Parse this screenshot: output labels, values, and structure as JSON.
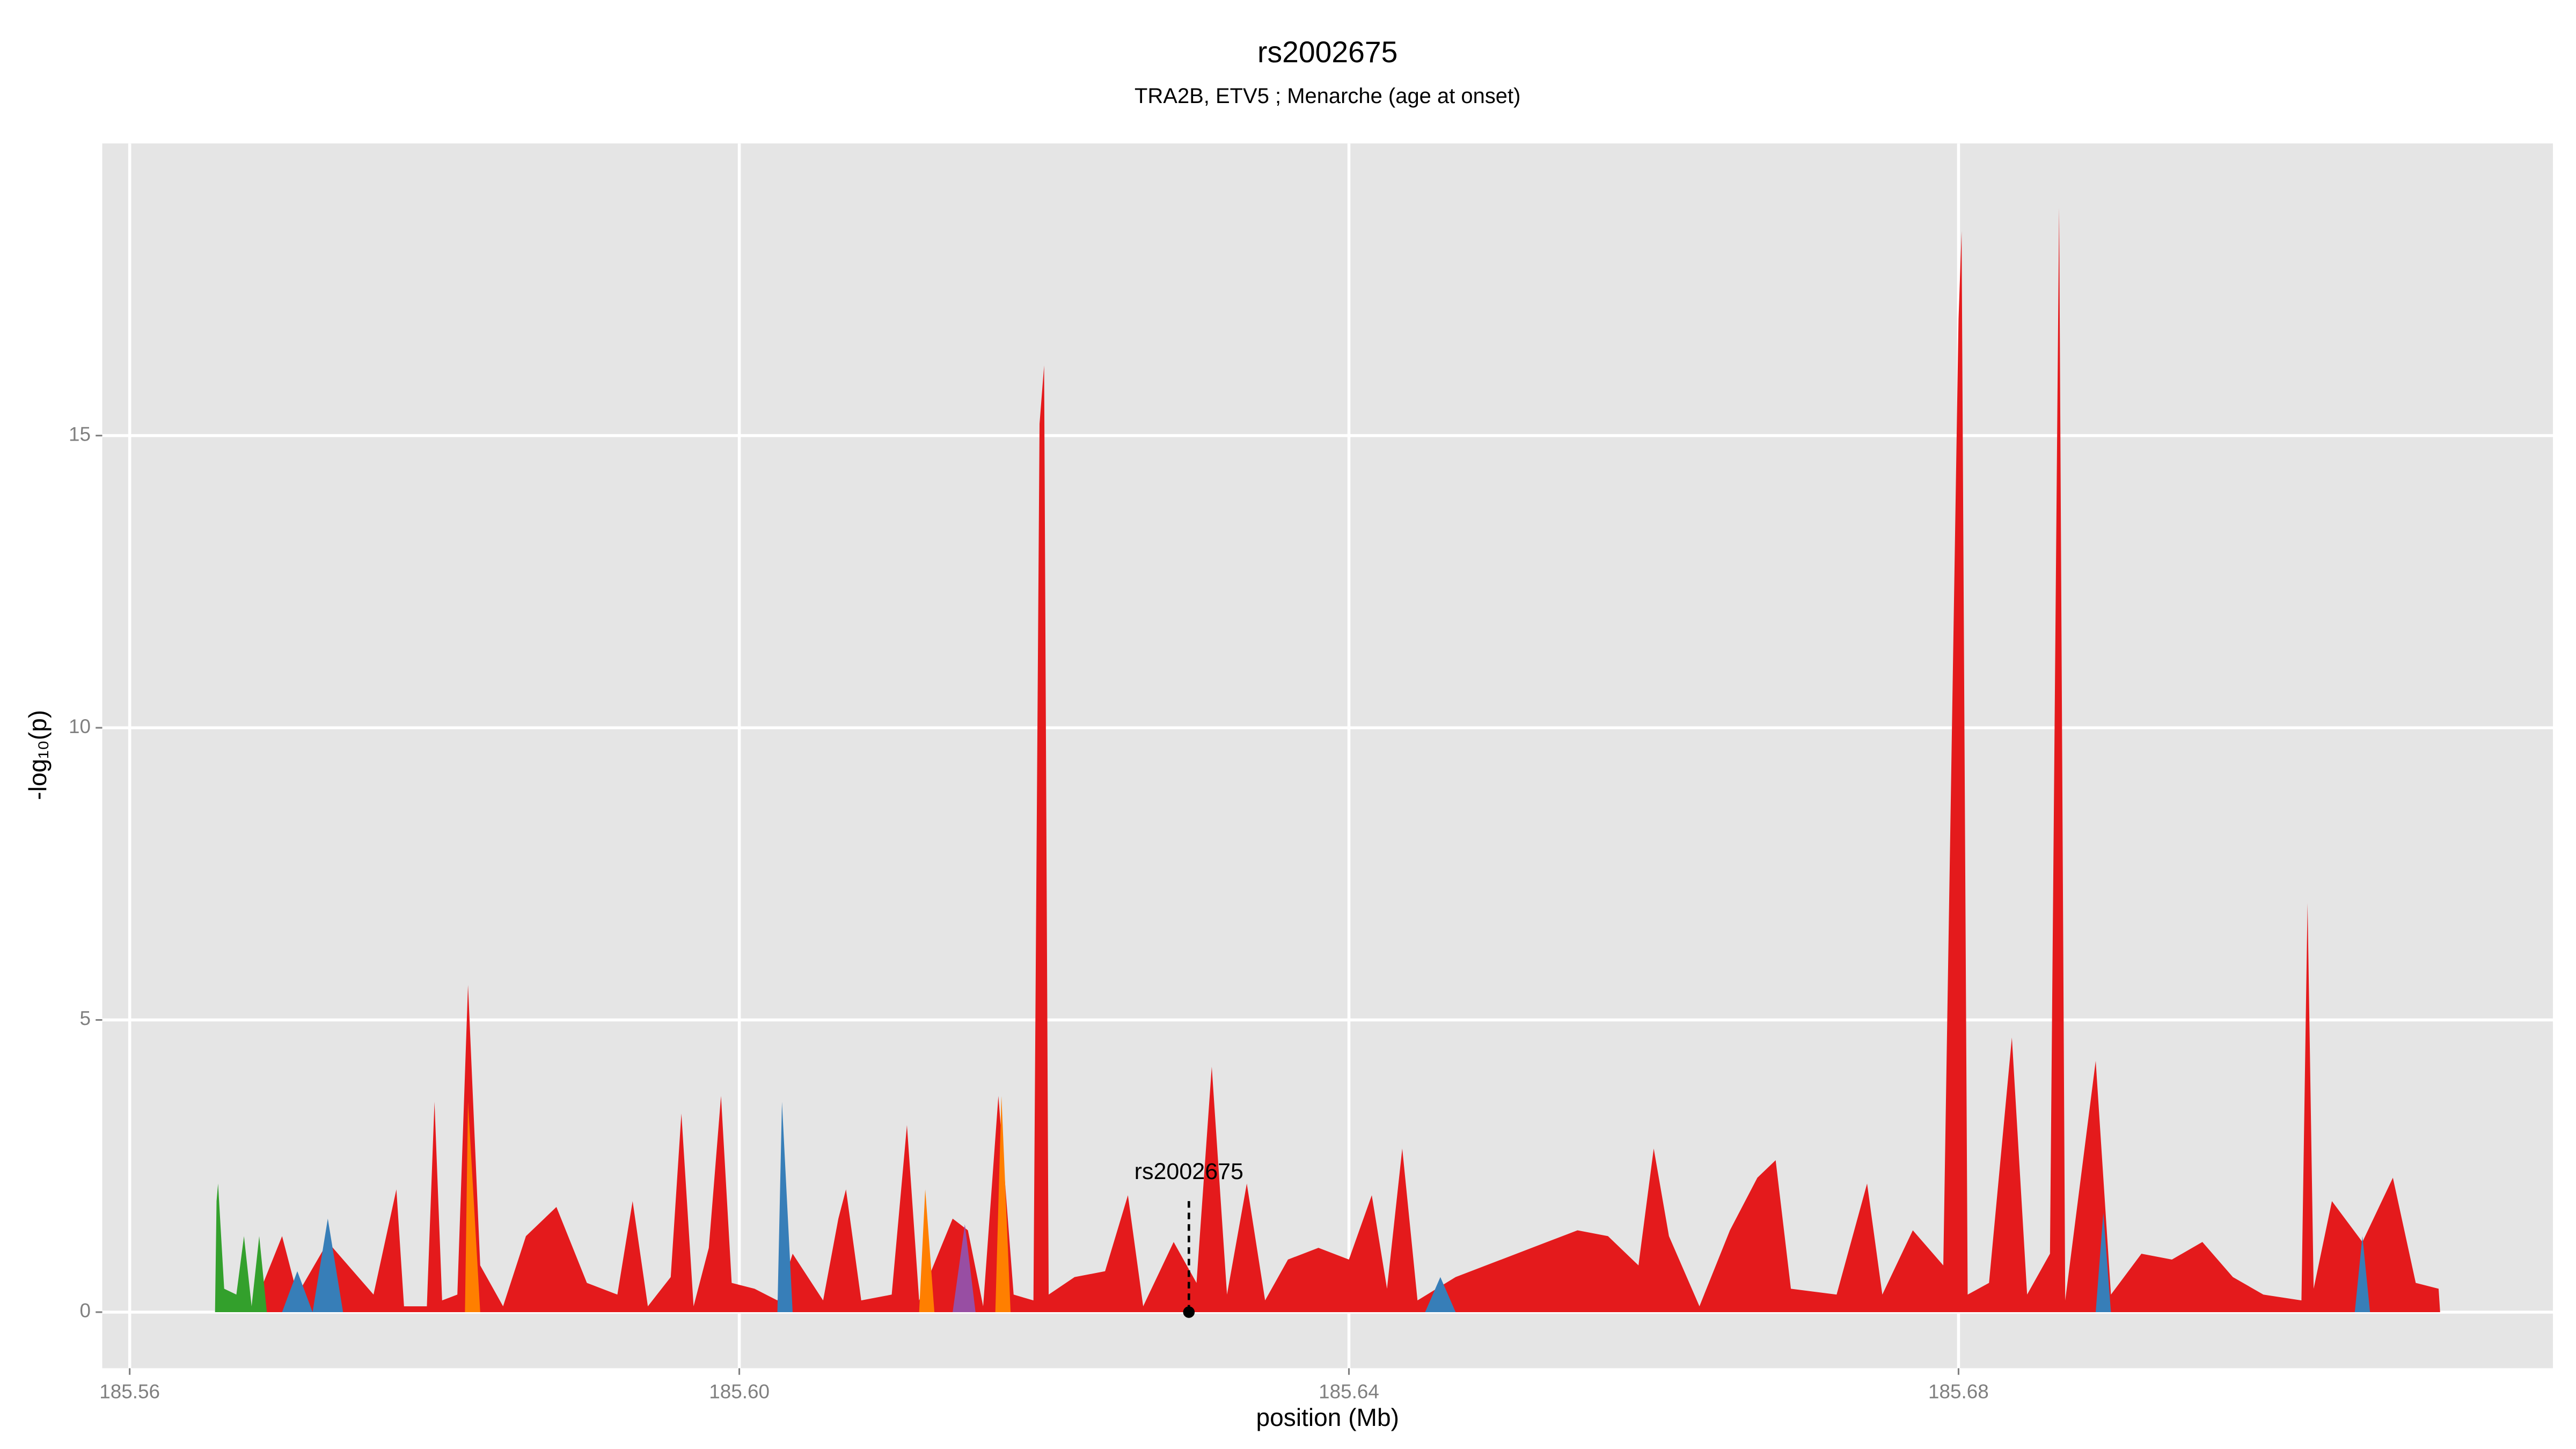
{
  "chart_data": {
    "type": "area",
    "title": "rs2002675",
    "subtitle": "TRA2B, ETV5 ; Menarche (age at onset)",
    "x_label": "position (Mb)",
    "y_label": "-log₁₀(p)",
    "xlim": [
      185.5582,
      185.719
    ],
    "ylim": [
      -0.96,
      20
    ],
    "xticks": [
      185.56,
      {
        "value": 185.6,
        "label": "185.60"
      },
      185.64,
      185.68
    ],
    "yticks": [
      0,
      5,
      10,
      15
    ],
    "grid": true,
    "annotation": {
      "label": "rs2002675",
      "x": 185.6295,
      "y_top": 1.9,
      "y_point": 0
    },
    "series": [
      {
        "color": "#e41a1c",
        "x": [
          185.568,
          185.57,
          185.571,
          185.573,
          185.576,
          185.5775,
          185.578,
          185.5795,
          185.58,
          185.5805,
          185.5815,
          185.5822,
          185.583,
          185.5845,
          185.586,
          185.588,
          185.59,
          185.592,
          185.593,
          185.594,
          185.5955,
          185.5962,
          185.597,
          185.598,
          185.5988,
          185.5995,
          185.601,
          185.6025,
          185.6035,
          185.6055,
          185.6065,
          185.607,
          185.608,
          185.61,
          185.611,
          185.6118,
          185.614,
          185.615,
          185.616,
          185.617,
          185.618,
          185.6193,
          185.6197,
          185.62,
          185.6203,
          185.622,
          185.624,
          185.6255,
          185.6265,
          185.6285,
          185.63,
          185.631,
          185.632,
          185.6333,
          185.6345,
          185.636,
          185.638,
          185.64,
          185.6415,
          185.6425,
          185.6435,
          185.6445,
          185.647,
          185.65,
          185.653,
          185.655,
          185.657,
          185.659,
          185.66,
          185.661,
          185.663,
          185.665,
          185.6668,
          185.668,
          185.669,
          185.672,
          185.674,
          185.675,
          185.677,
          185.679,
          185.68,
          185.6802,
          185.6806,
          185.682,
          185.6835,
          185.6845,
          185.686,
          185.6866,
          185.687,
          185.689,
          185.69,
          185.692,
          185.694,
          185.696,
          185.698,
          185.7,
          185.7025,
          185.7029,
          185.7033,
          185.7045,
          185.7065,
          185.7085,
          185.71,
          185.7115,
          185.7116
        ],
        "values": [
          0,
          1.3,
          0.3,
          1.2,
          0.3,
          2.1,
          0.1,
          0.1,
          3.6,
          0.2,
          0.3,
          5.6,
          0.8,
          0.1,
          1.3,
          1.8,
          0.5,
          0.3,
          1.9,
          0.1,
          0.6,
          3.4,
          0.1,
          1.1,
          3.7,
          0.5,
          0.4,
          0.2,
          1.0,
          0.2,
          1.6,
          2.1,
          0.2,
          0.3,
          3.2,
          0.2,
          1.6,
          1.4,
          0.1,
          3.7,
          0.3,
          0.2,
          15.2,
          16.2,
          0.3,
          0.6,
          0.7,
          2.0,
          0.1,
          1.2,
          0.5,
          4.2,
          0.3,
          2.2,
          0.2,
          0.9,
          1.1,
          0.9,
          2.0,
          0.4,
          2.8,
          0.2,
          0.6,
          0.9,
          1.2,
          1.4,
          1.3,
          0.8,
          2.8,
          1.3,
          0.1,
          1.4,
          2.3,
          2.6,
          0.4,
          0.3,
          2.2,
          0.3,
          1.4,
          0.8,
          17.0,
          18.5,
          0.3,
          0.5,
          4.7,
          0.3,
          1.0,
          18.9,
          0.2,
          4.3,
          0.3,
          1.0,
          0.9,
          1.2,
          0.6,
          0.3,
          0.2,
          7.0,
          0.4,
          1.9,
          1.2,
          2.3,
          0.5,
          0.4,
          0
        ]
      },
      {
        "color": "#ff7f00",
        "x": [
          185.582,
          185.5822,
          185.583,
          185.6118,
          185.6122,
          185.6128,
          185.6168,
          185.6172,
          185.6178
        ],
        "values": [
          0,
          3.6,
          0,
          0,
          2.1,
          0,
          0,
          3.7,
          0
        ]
      },
      {
        "color": "#377eb8",
        "x": [
          185.57,
          185.571,
          185.572,
          185.573,
          185.574,
          185.6025,
          185.6028,
          185.6035,
          185.645,
          185.646,
          185.647,
          185.689,
          185.6895,
          185.69,
          185.706,
          185.7065,
          185.707
        ],
        "values": [
          0,
          0.7,
          0,
          1.6,
          0,
          0,
          3.6,
          0,
          0,
          0.6,
          0,
          0,
          1.7,
          0,
          0,
          1.3,
          0
        ]
      },
      {
        "color": "#984ea3",
        "x": [
          185.614,
          185.6148,
          185.6155
        ],
        "values": [
          0,
          1.5,
          0
        ]
      },
      {
        "color": "#33a02c",
        "x": [
          185.5656,
          185.5657,
          185.5658,
          185.5662,
          185.567,
          185.5675,
          185.568,
          185.5685,
          185.569
        ],
        "values": [
          0,
          1.9,
          2.2,
          0.4,
          0.3,
          1.3,
          0.1,
          1.3,
          0
        ]
      }
    ]
  }
}
